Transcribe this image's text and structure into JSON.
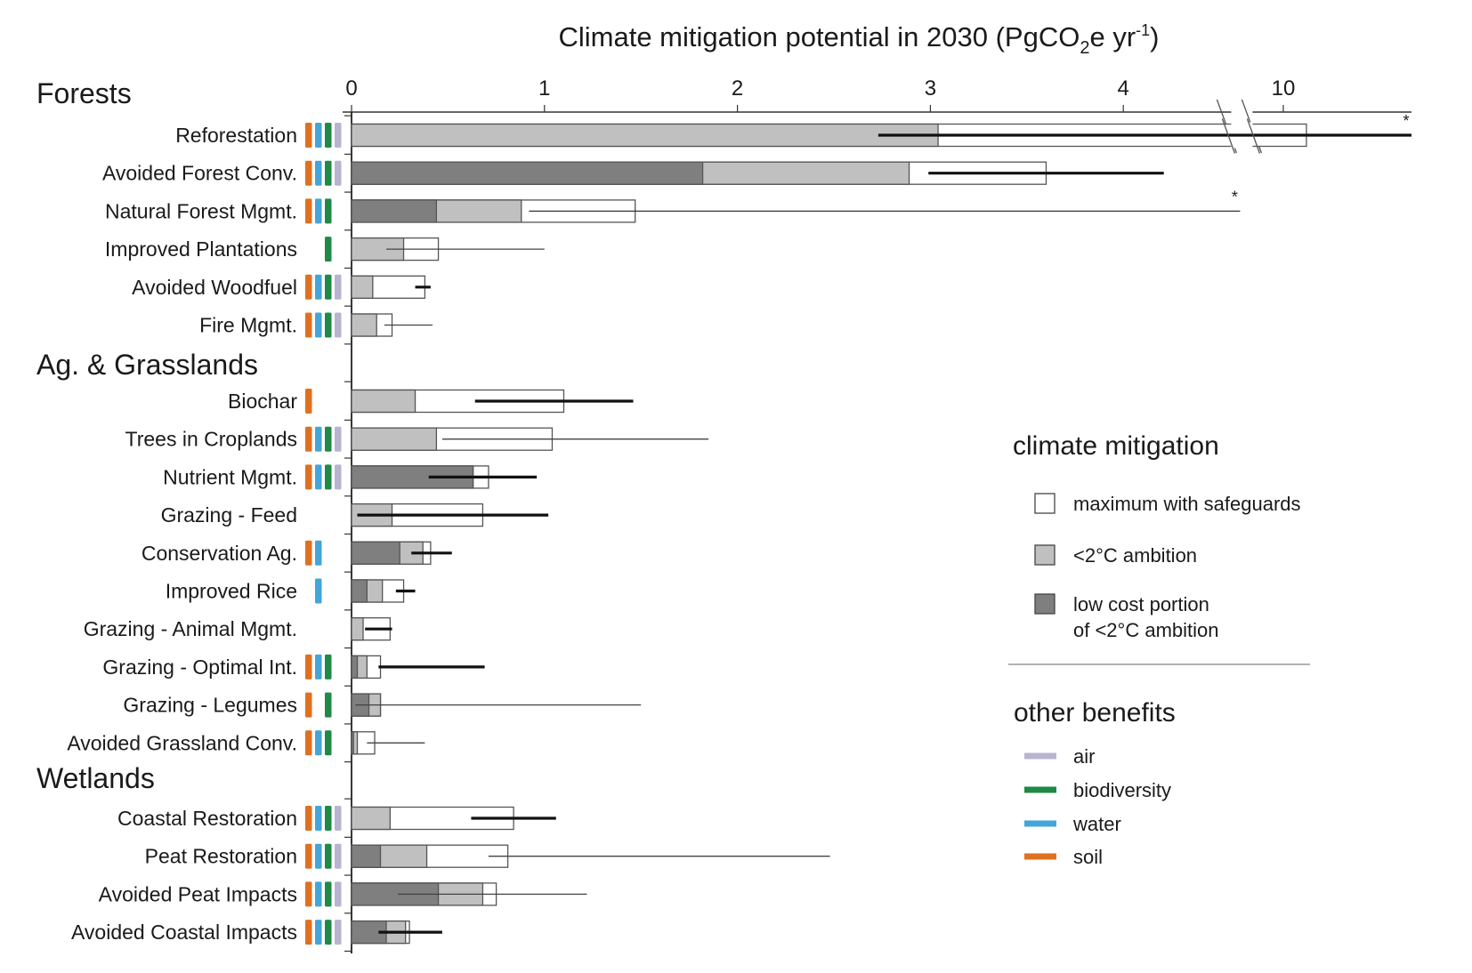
{
  "chart_data": {
    "type": "bar",
    "orientation": "horizontal",
    "stacked": true,
    "title": "Climate mitigation potential in 2030 (PgCO",
    "title_sub": "2",
    "title_mid": "e yr",
    "title_sup": "-1",
    "title_end": ")",
    "xlabel": "Climate mitigation potential in 2030 (PgCO2e yr-1)",
    "ylabel": "",
    "xlim": [
      0,
      10.5
    ],
    "axis_break": [
      4.55,
      9.85
    ],
    "x_ticks": [
      0,
      1,
      2,
      3,
      4,
      10
    ],
    "x_tick_labels": [
      "0",
      "1",
      "2",
      "3",
      "4",
      "10"
    ],
    "grid": false,
    "legend_position": "right",
    "series": [
      {
        "key": "low_cost",
        "name": "low cost portion of <2°C ambition",
        "color": "#7f7f7f"
      },
      {
        "key": "ambition",
        "name": "<2°C ambition",
        "color": "#c0c0c0"
      },
      {
        "key": "max",
        "name": "maximum with safeguards",
        "color": "#ffffff"
      }
    ],
    "benefits": [
      {
        "key": "soil",
        "name": "soil",
        "color": "#e07020"
      },
      {
        "key": "water",
        "name": "water",
        "color": "#45a5d8"
      },
      {
        "key": "biodiversity",
        "name": "biodiversity",
        "color": "#1e8a45"
      },
      {
        "key": "air",
        "name": "air",
        "color": "#b8b4d0"
      }
    ],
    "sections": [
      {
        "name": "Forests",
        "rows": [
          {
            "label": "Reforestation",
            "low_cost": 0,
            "ambition": 3.04,
            "max": 10.12,
            "err": [
              2.73,
              10.5
            ],
            "err_style": "thick",
            "truncated": true,
            "benefits": [
              "soil",
              "water",
              "biodiversity",
              "air"
            ]
          },
          {
            "label": "Avoided Forest Conv.",
            "low_cost": 1.82,
            "ambition": 2.89,
            "max": 3.6,
            "err": [
              2.99,
              4.21
            ],
            "err_style": "thick",
            "truncated": false,
            "benefits": [
              "soil",
              "water",
              "biodiversity",
              "air"
            ]
          },
          {
            "label": "Natural Forest Mgmt.",
            "low_cost": 0.44,
            "ambition": 0.88,
            "max": 1.47,
            "err": [
              0.92,
              4.76
            ],
            "err_style": "thin",
            "truncated": true,
            "benefits": [
              "soil",
              "water",
              "biodiversity"
            ]
          },
          {
            "label": "Improved Plantations",
            "low_cost": 0,
            "ambition": 0.27,
            "max": 0.45,
            "err": [
              0.18,
              1.0
            ],
            "err_style": "thin",
            "truncated": false,
            "benefits": [
              "biodiversity"
            ]
          },
          {
            "label": "Avoided Woodfuel",
            "low_cost": 0,
            "ambition": 0.11,
            "max": 0.38,
            "err": [
              0.33,
              0.41
            ],
            "err_style": "thick",
            "truncated": false,
            "benefits": [
              "soil",
              "water",
              "biodiversity",
              "air"
            ]
          },
          {
            "label": "Fire Mgmt.",
            "low_cost": 0,
            "ambition": 0.13,
            "max": 0.21,
            "err": [
              0.17,
              0.42
            ],
            "err_style": "thin",
            "truncated": false,
            "benefits": [
              "soil",
              "water",
              "biodiversity",
              "air"
            ]
          }
        ]
      },
      {
        "name": "Ag. & Grasslands",
        "rows": [
          {
            "label": "Biochar",
            "low_cost": 0,
            "ambition": 0.33,
            "max": 1.1,
            "err": [
              0.64,
              1.46
            ],
            "err_style": "thick",
            "truncated": false,
            "benefits": [
              "soil"
            ]
          },
          {
            "label": "Trees in Croplands",
            "low_cost": 0,
            "ambition": 0.44,
            "max": 1.04,
            "err": [
              0.47,
              1.85
            ],
            "err_style": "thin",
            "truncated": false,
            "benefits": [
              "soil",
              "water",
              "biodiversity",
              "air"
            ]
          },
          {
            "label": "Nutrient Mgmt.",
            "low_cost": 0.63,
            "ambition": 0.63,
            "max": 0.71,
            "err": [
              0.4,
              0.96
            ],
            "err_style": "thick",
            "truncated": false,
            "benefits": [
              "soil",
              "water",
              "biodiversity",
              "air"
            ]
          },
          {
            "label": "Grazing - Feed",
            "low_cost": 0,
            "ambition": 0.21,
            "max": 0.68,
            "err": [
              0.03,
              1.02
            ],
            "err_style": "thick",
            "truncated": false,
            "benefits": []
          },
          {
            "label": "Conservation Ag.",
            "low_cost": 0.25,
            "ambition": 0.37,
            "max": 0.41,
            "err": [
              0.31,
              0.52
            ],
            "err_style": "thick",
            "truncated": false,
            "benefits": [
              "soil",
              "water"
            ]
          },
          {
            "label": "Improved Rice",
            "low_cost": 0.08,
            "ambition": 0.16,
            "max": 0.27,
            "err": [
              0.23,
              0.33
            ],
            "err_style": "thick",
            "truncated": false,
            "benefits": [
              "water"
            ]
          },
          {
            "label": "Grazing - Animal Mgmt.",
            "low_cost": 0,
            "ambition": 0.06,
            "max": 0.2,
            "err": [
              0.07,
              0.21
            ],
            "err_style": "thick",
            "truncated": false,
            "benefits": []
          },
          {
            "label": "Grazing - Optimal Int.",
            "low_cost": 0.03,
            "ambition": 0.08,
            "max": 0.15,
            "err": [
              0.14,
              0.69
            ],
            "err_style": "thick",
            "truncated": false,
            "benefits": [
              "soil",
              "water",
              "biodiversity"
            ]
          },
          {
            "label": "Grazing - Legumes",
            "low_cost": 0.09,
            "ambition": 0.15,
            "max": 0.15,
            "err": [
              0.02,
              1.5
            ],
            "err_style": "thin",
            "truncated": false,
            "benefits": [
              "soil",
              "biodiversity"
            ]
          },
          {
            "label": "Avoided Grassland Conv.",
            "low_cost": 0.01,
            "ambition": 0.03,
            "max": 0.12,
            "err": [
              0.08,
              0.38
            ],
            "err_style": "thin",
            "truncated": false,
            "benefits": [
              "soil",
              "water",
              "biodiversity"
            ]
          }
        ]
      },
      {
        "name": "Wetlands",
        "rows": [
          {
            "label": "Coastal Restoration",
            "low_cost": 0,
            "ambition": 0.2,
            "max": 0.84,
            "err": [
              0.62,
              1.06
            ],
            "err_style": "thick",
            "truncated": false,
            "benefits": [
              "soil",
              "water",
              "biodiversity",
              "air"
            ]
          },
          {
            "label": "Peat Restoration",
            "low_cost": 0.15,
            "ambition": 0.39,
            "max": 0.81,
            "err": [
              0.71,
              2.48
            ],
            "err_style": "thin",
            "truncated": false,
            "benefits": [
              "soil",
              "water",
              "biodiversity",
              "air"
            ]
          },
          {
            "label": "Avoided Peat Impacts",
            "low_cost": 0.45,
            "ambition": 0.68,
            "max": 0.75,
            "err": [
              0.24,
              1.22
            ],
            "err_style": "thin",
            "truncated": false,
            "benefits": [
              "soil",
              "water",
              "biodiversity",
              "air"
            ]
          },
          {
            "label": "Avoided Coastal Impacts",
            "low_cost": 0.18,
            "ambition": 0.28,
            "max": 0.3,
            "err": [
              0.14,
              0.47
            ],
            "err_style": "thick",
            "truncated": false,
            "benefits": [
              "soil",
              "water",
              "biodiversity",
              "air"
            ]
          }
        ]
      }
    ],
    "truncation_marker": "*",
    "legend": {
      "climate_heading": "climate mitigation",
      "climate_items": [
        {
          "key": "max",
          "lines": [
            "maximum with safeguards"
          ]
        },
        {
          "key": "ambition",
          "lines": [
            "<2°C ambition"
          ]
        },
        {
          "key": "low_cost",
          "lines": [
            "low cost portion",
            "of <2°C ambition"
          ]
        }
      ],
      "benefits_heading": "other benefits",
      "benefit_items": [
        "air",
        "biodiversity",
        "water",
        "soil"
      ]
    }
  }
}
